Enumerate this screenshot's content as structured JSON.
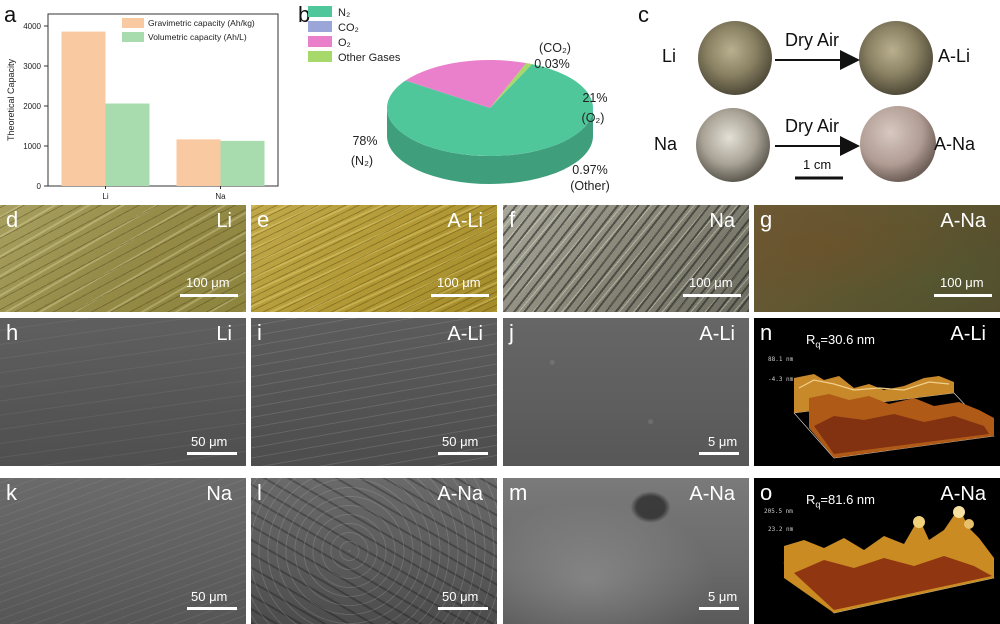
{
  "panels": {
    "a": "a",
    "b": "b",
    "c": "c",
    "d": "d",
    "e": "e",
    "f": "f",
    "g": "g",
    "h": "h",
    "i": "i",
    "j": "j",
    "k": "k",
    "l": "l",
    "m": "m",
    "n": "n",
    "o": "o"
  },
  "chart_data": [
    {
      "type": "bar",
      "categories": [
        "Li",
        "Na"
      ],
      "series": [
        {
          "name": "Gravimetric capacity (Ah/kg)",
          "values": [
            3860,
            1166
          ],
          "color": "#f9c9a2"
        },
        {
          "name": "Volumetric capacity (Ah/L)",
          "values": [
            2062,
            1128
          ],
          "color": "#a8dcae"
        }
      ],
      "ylabel": "Theoretical Capacity",
      "yticks": [
        0,
        1000,
        2000,
        3000,
        4000
      ],
      "ylim": [
        0,
        4300
      ],
      "legend": "top-right"
    },
    {
      "type": "pie",
      "slices": [
        {
          "name": "N2",
          "legend": "N₂",
          "value": 78,
          "label": "78%",
          "sub": "(N₂)",
          "color": "#4fc79b"
        },
        {
          "name": "CO2",
          "legend": "CO₂",
          "value": 0.03,
          "label": "(CO₂)",
          "sub": "0.03%",
          "color": "#9aa6d8"
        },
        {
          "name": "O2",
          "legend": "O₂",
          "value": 21,
          "label": "21%",
          "sub": "(O₂)",
          "color": "#ea7fcb"
        },
        {
          "name": "Other Gases",
          "legend": "Other Gases",
          "value": 0.97,
          "label": "0.97%",
          "sub": "(Other)",
          "color": "#a6d96a"
        }
      ]
    }
  ],
  "panel_c": {
    "li_label": "Li",
    "na_label": "Na",
    "arrow_label": "Dry Air",
    "ali_label": "A-Li",
    "ana_label": "A-Na",
    "scale": "1 cm"
  },
  "tiles": {
    "d": {
      "tag": "Li",
      "scale": "100 μm"
    },
    "e": {
      "tag": "A-Li",
      "scale": "100 μm"
    },
    "f": {
      "tag": "Na",
      "scale": "100 μm"
    },
    "g": {
      "tag": "A-Na",
      "scale": "100 μm"
    },
    "h": {
      "tag": "Li",
      "scale": "50 μm"
    },
    "i": {
      "tag": "A-Li",
      "scale": "50 μm"
    },
    "j": {
      "tag": "A-Li",
      "scale": "5 μm"
    },
    "k": {
      "tag": "Na",
      "scale": "50 μm"
    },
    "l": {
      "tag": "A-Na",
      "scale": "50 μm"
    },
    "m": {
      "tag": "A-Na",
      "scale": "5 μm"
    },
    "n": {
      "tag": "A-Li",
      "rq": "R",
      "rq_sub": "q",
      "rq_val": "=30.6 nm",
      "zmax": "88.1 nm",
      "zmin": "-4.3 nm"
    },
    "o": {
      "tag": "A-Na",
      "rq": "R",
      "rq_sub": "q",
      "rq_val": "=81.6 nm",
      "zmax": "205.5 nm",
      "zmin": "23.2 nm"
    }
  }
}
